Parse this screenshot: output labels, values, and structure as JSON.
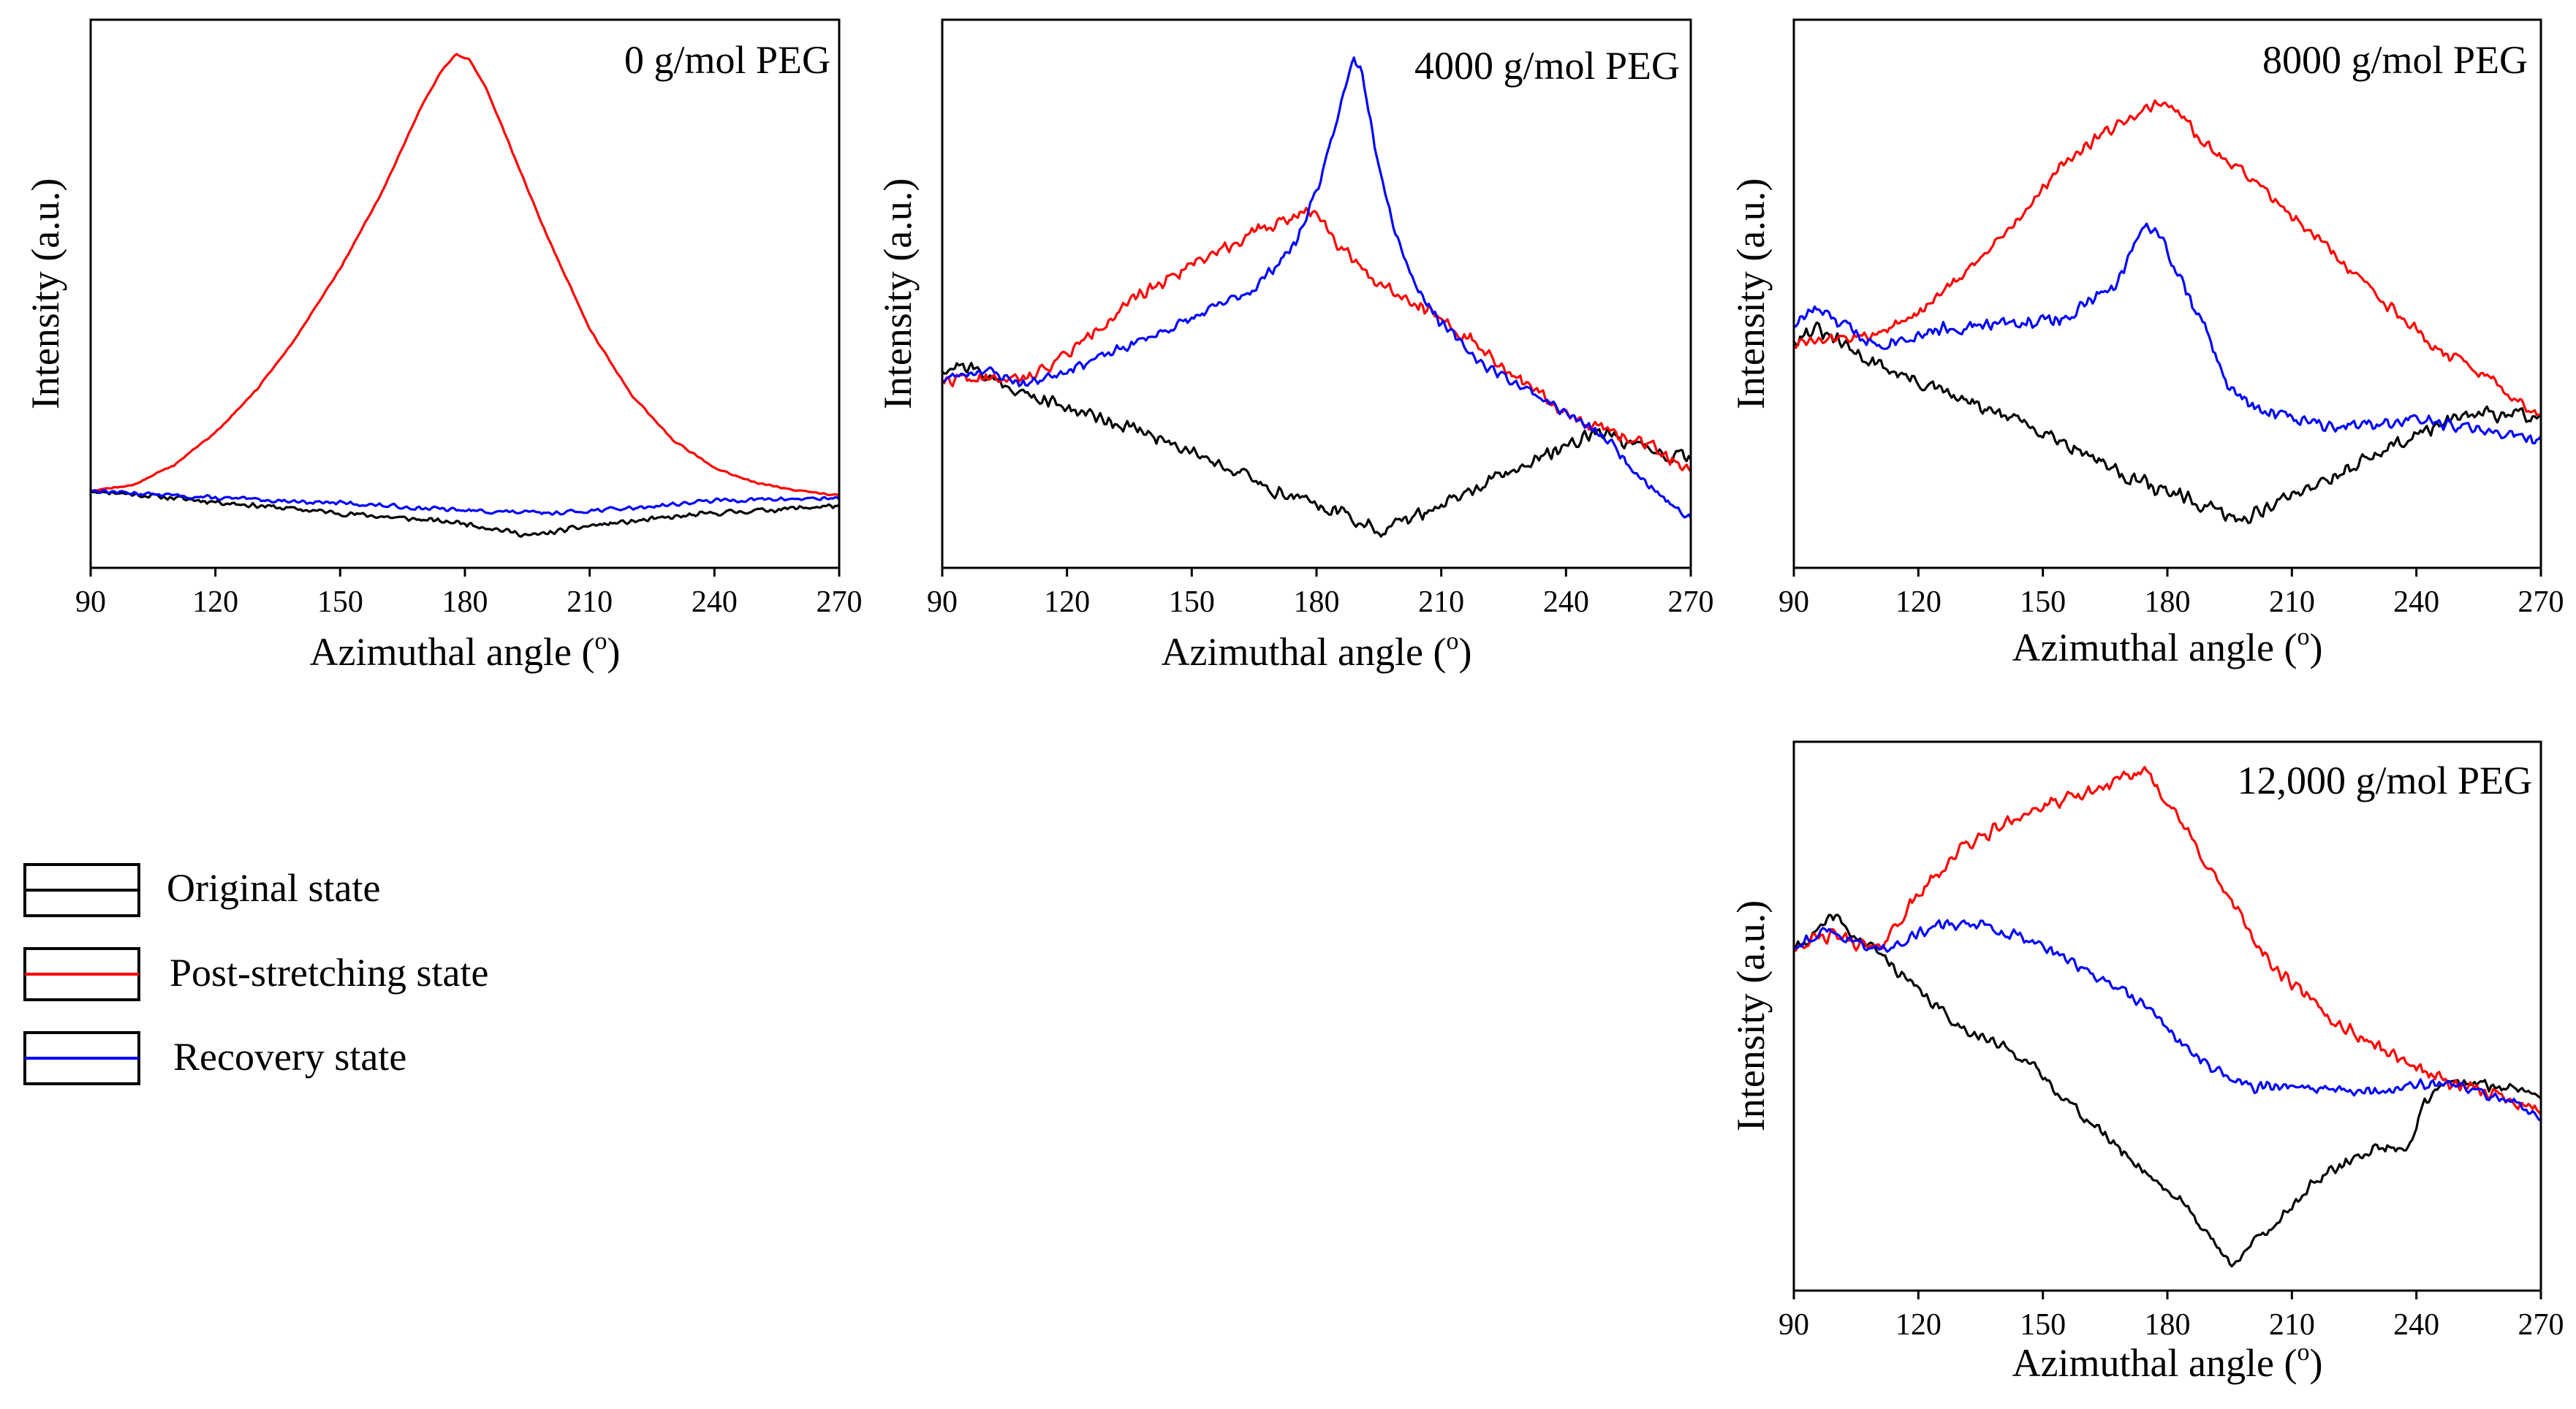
{
  "chart_data": [
    {
      "type": "line",
      "title": "0 g/mol PEG",
      "xlabel": "Azimuthal angle (",
      "xlabel_sup": "o",
      "xlabel_close": ")",
      "ylabel": "Intensity (a.u.)",
      "xlim": [
        90,
        270
      ],
      "ylim": [
        0,
        100
      ],
      "xticks": [
        "90",
        "120",
        "150",
        "180",
        "210",
        "240",
        "270"
      ],
      "series": [
        {
          "name": "Original state",
          "color": "#000000",
          "noise": 0.6,
          "seed": 11,
          "points": [
            [
              90,
              11
            ],
            [
              110,
              9.5
            ],
            [
              150,
              6.5
            ],
            [
              180,
              4.5
            ],
            [
              196,
              2
            ],
            [
              210,
              4
            ],
            [
              240,
              6.5
            ],
            [
              270,
              8
            ]
          ]
        },
        {
          "name": "Post-stretching state",
          "color": "#ff0000",
          "noise": 0.2,
          "seed": 12,
          "points": [
            [
              90,
              11
            ],
            [
              100,
              12
            ],
            [
              110,
              16
            ],
            [
              120,
              22.5
            ],
            [
              130,
              31
            ],
            [
              140,
              42
            ],
            [
              150,
              55
            ],
            [
              160,
              70
            ],
            [
              165,
              79
            ],
            [
              170,
              88
            ],
            [
              175,
              95
            ],
            [
              178,
              97.5
            ],
            [
              181,
              96.5
            ],
            [
              185,
              91
            ],
            [
              190,
              81
            ],
            [
              195,
              71
            ],
            [
              200,
              61
            ],
            [
              210,
              43
            ],
            [
              220,
              30
            ],
            [
              230,
              21
            ],
            [
              240,
              15.5
            ],
            [
              250,
              12.5
            ],
            [
              260,
              11
            ],
            [
              270,
              10
            ]
          ]
        },
        {
          "name": "Recovery state",
          "color": "#0000ff",
          "noise": 0.5,
          "seed": 13,
          "points": [
            [
              90,
              11
            ],
            [
              120,
              9.5
            ],
            [
              150,
              8.5
            ],
            [
              180,
              7
            ],
            [
              200,
              6.5
            ],
            [
              220,
              7.5
            ],
            [
              240,
              9
            ],
            [
              270,
              9.5
            ]
          ]
        }
      ]
    },
    {
      "type": "line",
      "title": "4000 g/mol PEG",
      "xlabel": "Azimuthal angle (",
      "xlabel_sup": "o",
      "xlabel_close": ")",
      "ylabel": "Intensity (a.u.)",
      "xlim": [
        90,
        270
      ],
      "ylim": [
        0,
        100
      ],
      "xticks": [
        "90",
        "120",
        "150",
        "180",
        "210",
        "240",
        "270"
      ],
      "series": [
        {
          "name": "Original state",
          "color": "#000000",
          "noise": 1.6,
          "seed": 21,
          "points": [
            [
              90,
              35
            ],
            [
              95,
              36
            ],
            [
              110,
              30
            ],
            [
              130,
              25
            ],
            [
              150,
              19
            ],
            [
              170,
              11
            ],
            [
              185,
              7
            ],
            [
              195,
              3
            ],
            [
              210,
              8
            ],
            [
              230,
              16
            ],
            [
              248,
              23
            ],
            [
              255,
              20
            ],
            [
              270,
              17
            ]
          ]
        },
        {
          "name": "Post-stretching state",
          "color": "#ff0000",
          "noise": 1.5,
          "seed": 22,
          "points": [
            [
              90,
              33
            ],
            [
              110,
              33
            ],
            [
              120,
              38
            ],
            [
              130,
              45
            ],
            [
              140,
              51
            ],
            [
              150,
              56
            ],
            [
              160,
              60
            ],
            [
              170,
              64
            ],
            [
              180,
              67
            ],
            [
              185,
              60
            ],
            [
              195,
              52
            ],
            [
              205,
              48
            ],
            [
              215,
              42
            ],
            [
              230,
              32
            ],
            [
              245,
              24
            ],
            [
              260,
              20
            ],
            [
              270,
              15
            ]
          ]
        },
        {
          "name": "Recovery state",
          "color": "#0000ff",
          "noise": 1.2,
          "seed": 23,
          "points": [
            [
              90,
              33
            ],
            [
              100,
              35
            ],
            [
              110,
              32
            ],
            [
              130,
              38
            ],
            [
              150,
              45
            ],
            [
              165,
              51
            ],
            [
              175,
              60
            ],
            [
              182,
              75
            ],
            [
              186,
              88
            ],
            [
              189,
              97
            ],
            [
              191,
              94
            ],
            [
              194,
              80
            ],
            [
              198,
              65
            ],
            [
              203,
              53
            ],
            [
              210,
              44
            ],
            [
              220,
              36
            ],
            [
              235,
              29
            ],
            [
              250,
              21
            ],
            [
              260,
              12
            ],
            [
              270,
              5
            ]
          ]
        }
      ]
    },
    {
      "type": "line",
      "title": "8000 g/mol PEG",
      "xlabel": "Azimuthal angle (",
      "xlabel_sup": "o",
      "xlabel_close": ")",
      "ylabel": "Intensity (a.u.)",
      "xlim": [
        90,
        270
      ],
      "ylim": [
        0,
        100
      ],
      "xticks": [
        "90",
        "120",
        "150",
        "180",
        "210",
        "240",
        "270"
      ],
      "series": [
        {
          "name": "Original state",
          "color": "#000000",
          "noise": 1.8,
          "seed": 31,
          "points": [
            [
              90,
              41
            ],
            [
              95,
              43
            ],
            [
              110,
              36
            ],
            [
              130,
              29
            ],
            [
              150,
              23
            ],
            [
              170,
              14
            ],
            [
              185,
              9
            ],
            [
              197,
              5
            ],
            [
              210,
              10
            ],
            [
              230,
              18
            ],
            [
              245,
              24
            ],
            [
              255,
              26
            ],
            [
              270,
              26
            ]
          ]
        },
        {
          "name": "Post-stretching state",
          "color": "#ff0000",
          "noise": 1.3,
          "seed": 32,
          "points": [
            [
              90,
              40
            ],
            [
              110,
              42
            ],
            [
              120,
              46
            ],
            [
              140,
              61
            ],
            [
              155,
              76
            ],
            [
              165,
              82
            ],
            [
              175,
              87
            ],
            [
              180,
              88
            ],
            [
              190,
              79
            ],
            [
              200,
              73
            ],
            [
              215,
              62
            ],
            [
              230,
              50
            ],
            [
              245,
              39
            ],
            [
              260,
              32
            ],
            [
              270,
              25
            ]
          ]
        },
        {
          "name": "Recovery state",
          "color": "#0000ff",
          "noise": 1.6,
          "seed": 33,
          "points": [
            [
              90,
              44
            ],
            [
              95,
              47
            ],
            [
              110,
              40
            ],
            [
              125,
              43
            ],
            [
              140,
              44
            ],
            [
              155,
              45
            ],
            [
              168,
              52
            ],
            [
              174,
              64
            ],
            [
              178,
              62
            ],
            [
              183,
              53
            ],
            [
              188,
              45
            ],
            [
              195,
              31
            ],
            [
              202,
              27
            ],
            [
              220,
              24
            ],
            [
              240,
              25
            ],
            [
              255,
              23
            ],
            [
              262,
              22
            ],
            [
              270,
              21
            ]
          ]
        }
      ]
    },
    {
      "type": "line",
      "title": "12,000 g/mol PEG",
      "xlabel": "Azimuthal angle (",
      "xlabel_sup": "o",
      "xlabel_close": ")",
      "ylabel": "Intensity (a.u.)",
      "xlim": [
        90,
        270
      ],
      "ylim": [
        0,
        100
      ],
      "xticks": [
        "90",
        "120",
        "150",
        "180",
        "210",
        "240",
        "270"
      ],
      "series": [
        {
          "name": "Original state",
          "color": "#000000",
          "noise": 1.3,
          "seed": 41,
          "points": [
            [
              90,
              63
            ],
            [
              96,
              67
            ],
            [
              100,
              70
            ],
            [
              104,
              66
            ],
            [
              110,
              63
            ],
            [
              120,
              55
            ],
            [
              130,
              48
            ],
            [
              145,
              42
            ],
            [
              160,
              30
            ],
            [
              175,
              19
            ],
            [
              185,
              12
            ],
            [
              195,
              1
            ],
            [
              205,
              8
            ],
            [
              215,
              17
            ],
            [
              230,
              24
            ],
            [
              238,
              24
            ],
            [
              242,
              33
            ],
            [
              248,
              37
            ],
            [
              260,
              36
            ],
            [
              270,
              35
            ]
          ]
        },
        {
          "name": "Post-stretching state",
          "color": "#ff0000",
          "noise": 1.6,
          "seed": 42,
          "points": [
            [
              90,
              64
            ],
            [
              100,
              66
            ],
            [
              110,
              63
            ],
            [
              120,
              74
            ],
            [
              130,
              83
            ],
            [
              145,
              90
            ],
            [
              160,
              94
            ],
            [
              170,
              97
            ],
            [
              175,
              99
            ],
            [
              185,
              86
            ],
            [
              195,
              73
            ],
            [
              205,
              60
            ],
            [
              220,
              49
            ],
            [
              235,
              42
            ],
            [
              250,
              36
            ],
            [
              262,
              34
            ],
            [
              270,
              31
            ]
          ]
        },
        {
          "name": "Recovery state",
          "color": "#0000ff",
          "noise": 1.3,
          "seed": 43,
          "points": [
            [
              90,
              64
            ],
            [
              98,
              67
            ],
            [
              110,
              63
            ],
            [
              125,
              68
            ],
            [
              135,
              68
            ],
            [
              148,
              65
            ],
            [
              162,
              58
            ],
            [
              175,
              52
            ],
            [
              183,
              45
            ],
            [
              190,
              40
            ],
            [
              200,
              36
            ],
            [
              215,
              36
            ],
            [
              230,
              35
            ],
            [
              245,
              37
            ],
            [
              260,
              34
            ],
            [
              270,
              30
            ]
          ]
        }
      ]
    }
  ],
  "legend": {
    "placement": "left-middle",
    "items": [
      {
        "label": "Original state",
        "color": "#000000"
      },
      {
        "label": "Post-stretching state",
        "color": "#ff0000"
      },
      {
        "label": "Recovery state",
        "color": "#0000ff"
      }
    ]
  }
}
